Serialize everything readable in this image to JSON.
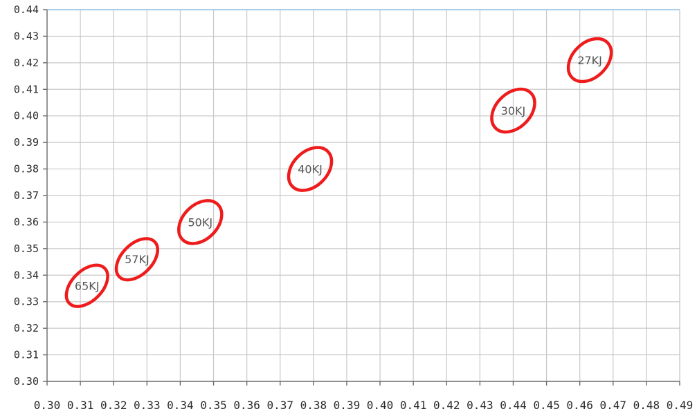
{
  "chart_data": {
    "type": "scatter",
    "title": "",
    "xlabel": "",
    "ylabel": "",
    "xlim": [
      0.3,
      0.49
    ],
    "ylim": [
      0.3,
      0.44
    ],
    "x_ticks": [
      "0.30",
      "0.31",
      "0.32",
      "0.33",
      "0.34",
      "0.35",
      "0.36",
      "0.37",
      "0.38",
      "0.39",
      "0.40",
      "0.41",
      "0.42",
      "0.43",
      "0.44",
      "0.45",
      "0.46",
      "0.47",
      "0.48",
      "0.49"
    ],
    "y_ticks": [
      "0.30",
      "0.31",
      "0.32",
      "0.33",
      "0.34",
      "0.35",
      "0.36",
      "0.37",
      "0.38",
      "0.39",
      "0.40",
      "0.41",
      "0.42",
      "0.43",
      "0.44"
    ],
    "grid": true,
    "marker_color": "#ee1c1c",
    "points": [
      {
        "label": "65KJ",
        "x": 0.312,
        "y": 0.336
      },
      {
        "label": "57KJ",
        "x": 0.327,
        "y": 0.346
      },
      {
        "label": "50KJ",
        "x": 0.346,
        "y": 0.36
      },
      {
        "label": "40KJ",
        "x": 0.379,
        "y": 0.38
      },
      {
        "label": "30KJ",
        "x": 0.44,
        "y": 0.402
      },
      {
        "label": "27KJ",
        "x": 0.463,
        "y": 0.421
      }
    ]
  }
}
